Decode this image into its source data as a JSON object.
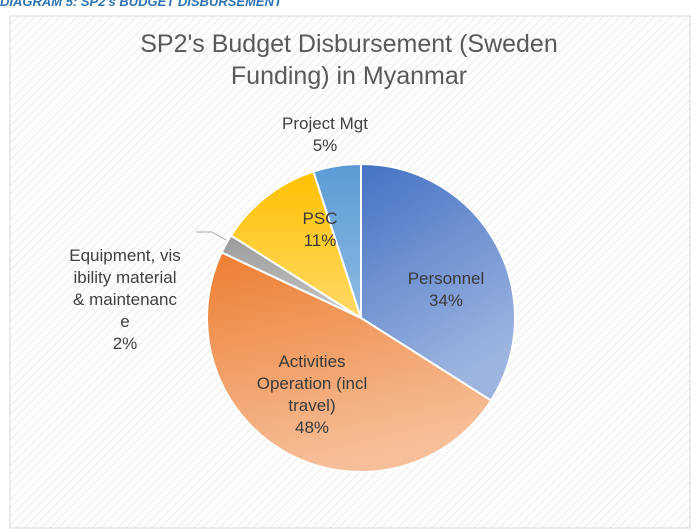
{
  "caption": "DIAGRAM 5: SP2's BUDGET DISBURSEMENT",
  "chart_data": {
    "type": "pie",
    "title": "SP2's Budget Disbursement (Sweden Funding) in Myanmar",
    "categories": [
      "Personnel",
      "Activities Operation (incl travel)",
      "Equipment, visibility material & maintenance",
      "PSC",
      "Project Mgt"
    ],
    "values": [
      34,
      48,
      2,
      11,
      5
    ],
    "value_labels": [
      "34%",
      "48%",
      "2%",
      "11%",
      "5%"
    ],
    "colors": [
      "#4472c4",
      "#ed7d31",
      "#a5a5a5",
      "#ffc000",
      "#5b9bd5"
    ]
  }
}
